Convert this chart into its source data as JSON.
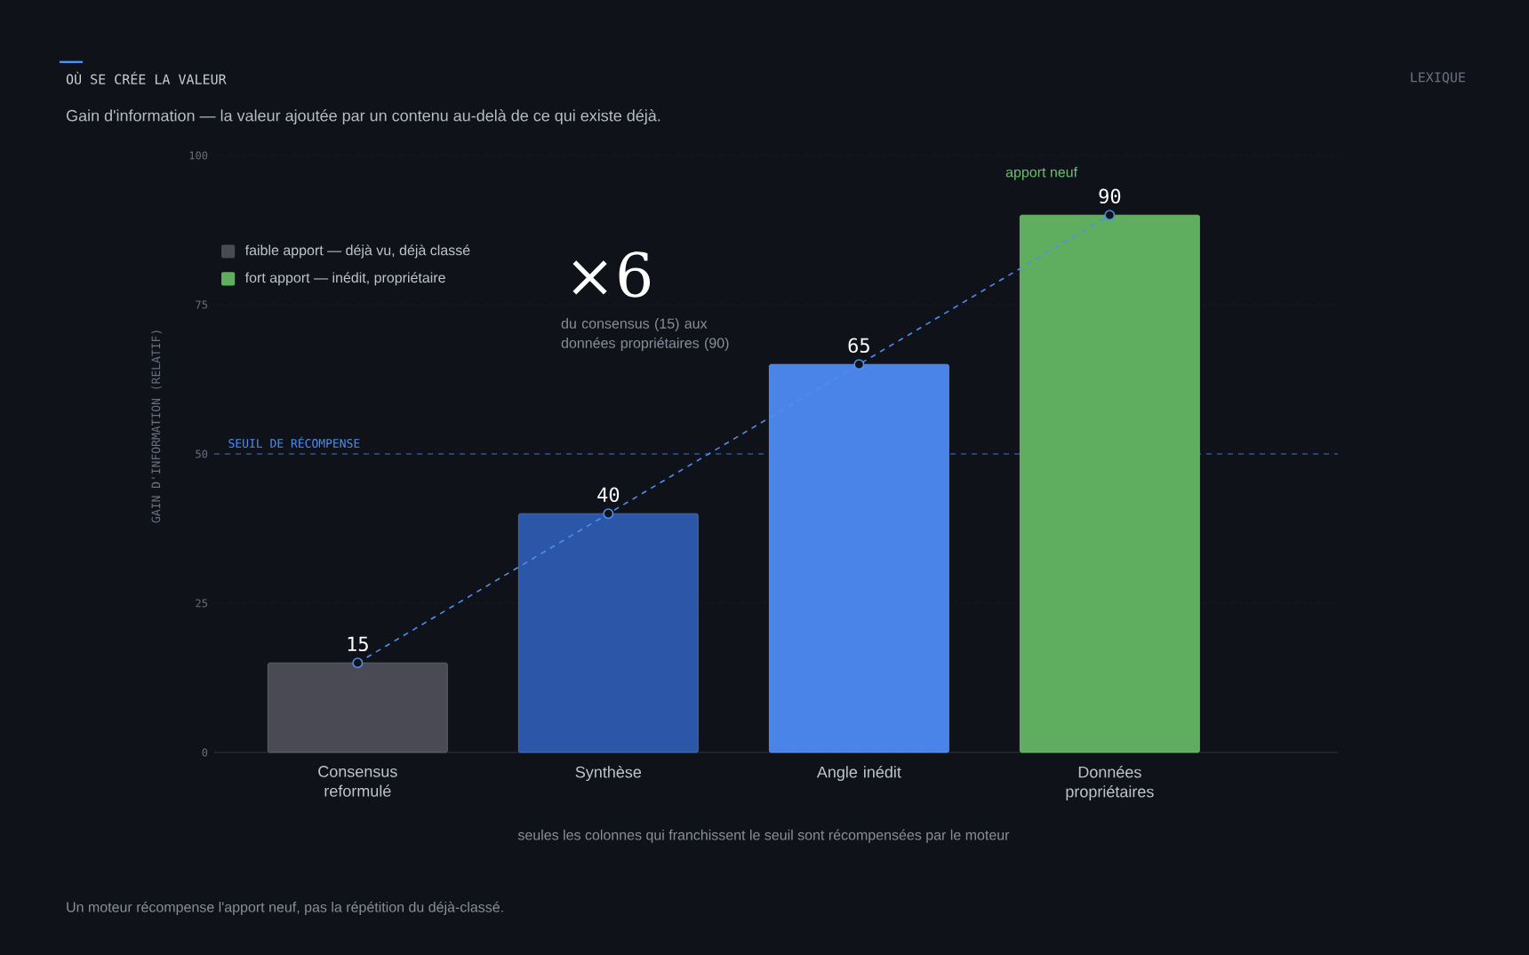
{
  "chart_data": {
    "type": "bar",
    "title": "OÙ SE CRÉE LA VALEUR",
    "subtitle": "Gain d'information — la valeur ajoutée par un contenu au-delà de ce qui existe déjà.",
    "ylabel": "GAIN D'INFORMATION (RELATIF)",
    "categories": [
      "Consensus reformulé",
      "Synthèse",
      "Angle inédit",
      "Données propriétaires"
    ],
    "series": [
      {
        "name": "faible apport — déjà vu, déjà classé",
        "color": "#4a4a54",
        "values": [
          15,
          null,
          null,
          null
        ]
      },
      {
        "colors": [
          null,
          "#2c57a8",
          "#4b84e8",
          null
        ],
        "values": [
          null,
          40,
          65,
          null
        ]
      },
      {
        "name": "fort apport — inédit, propriétaire",
        "color": "#5fae5f",
        "values": [
          null,
          null,
          null,
          90
        ]
      },
      {
        "type": "line",
        "color": "#4f8ff0",
        "line_style": "dashed",
        "marker": "circle",
        "values": [
          15,
          40,
          65,
          90
        ],
        "value_labels": [
          "15",
          "40",
          "65",
          "90"
        ]
      }
    ],
    "ylim": [
      0,
      100
    ],
    "yticks": [
      0,
      25,
      50,
      75,
      100
    ],
    "grid": "y",
    "legend": "top left",
    "ref_lines": [
      {
        "axis": "y",
        "value": 50,
        "label": "SEUIL DE RÉCOMPENSE",
        "color": "#4f8ff0",
        "line_style": "dashed"
      }
    ],
    "annotations": [
      "×6",
      "du consensus (15) aux données propriétaires (90)",
      "seules les colonnes qui franchissent le seuil sont récompensées par le moteur",
      "Un moteur récompense l'apport neuf, pas la répétition du déjà-classé.",
      "LEXIQUE",
      "apport neuf"
    ]
  }
}
